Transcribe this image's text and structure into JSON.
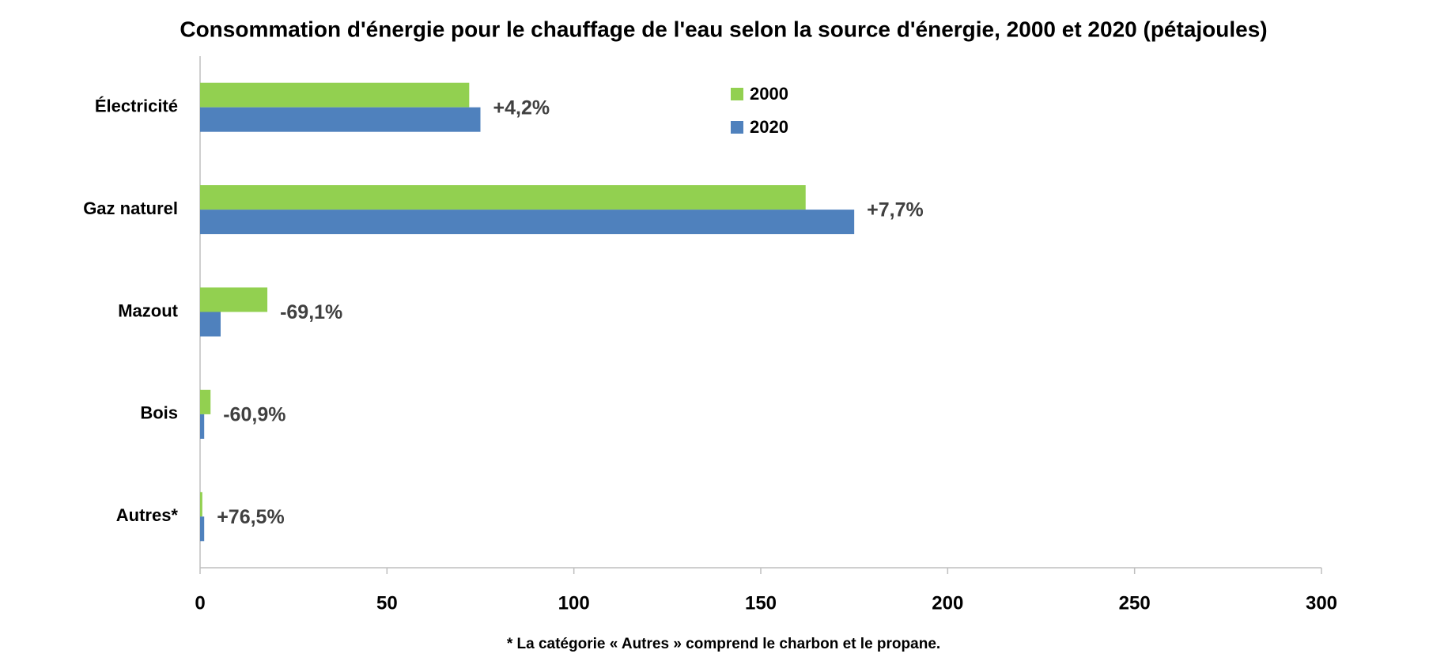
{
  "chart_data": {
    "type": "hbar",
    "title": "Consommation d'énergie pour le chauffage de l'eau selon la source d'énergie, 2000 et 2020 (pétajoules)",
    "categories": [
      "Électricité",
      "Gaz naturel",
      "Mazout",
      "Bois",
      "Autres*"
    ],
    "series": [
      {
        "name": "2000",
        "color": "#92d050",
        "values": [
          72,
          162,
          18,
          2.8,
          0.6
        ]
      },
      {
        "name": "2020",
        "color": "#4f81bd",
        "values": [
          75,
          175,
          5.5,
          1.1,
          1.1
        ]
      }
    ],
    "annotations": [
      "+4,2%",
      "+7,7%",
      "-69,1%",
      "-60,9%",
      "+76,5%"
    ],
    "xlim": [
      0,
      300
    ],
    "xticks": [
      0,
      50,
      100,
      150,
      200,
      250,
      300
    ],
    "grid": false,
    "footnote": "* La catégorie « Autres » comprend le charbon et le propane."
  }
}
